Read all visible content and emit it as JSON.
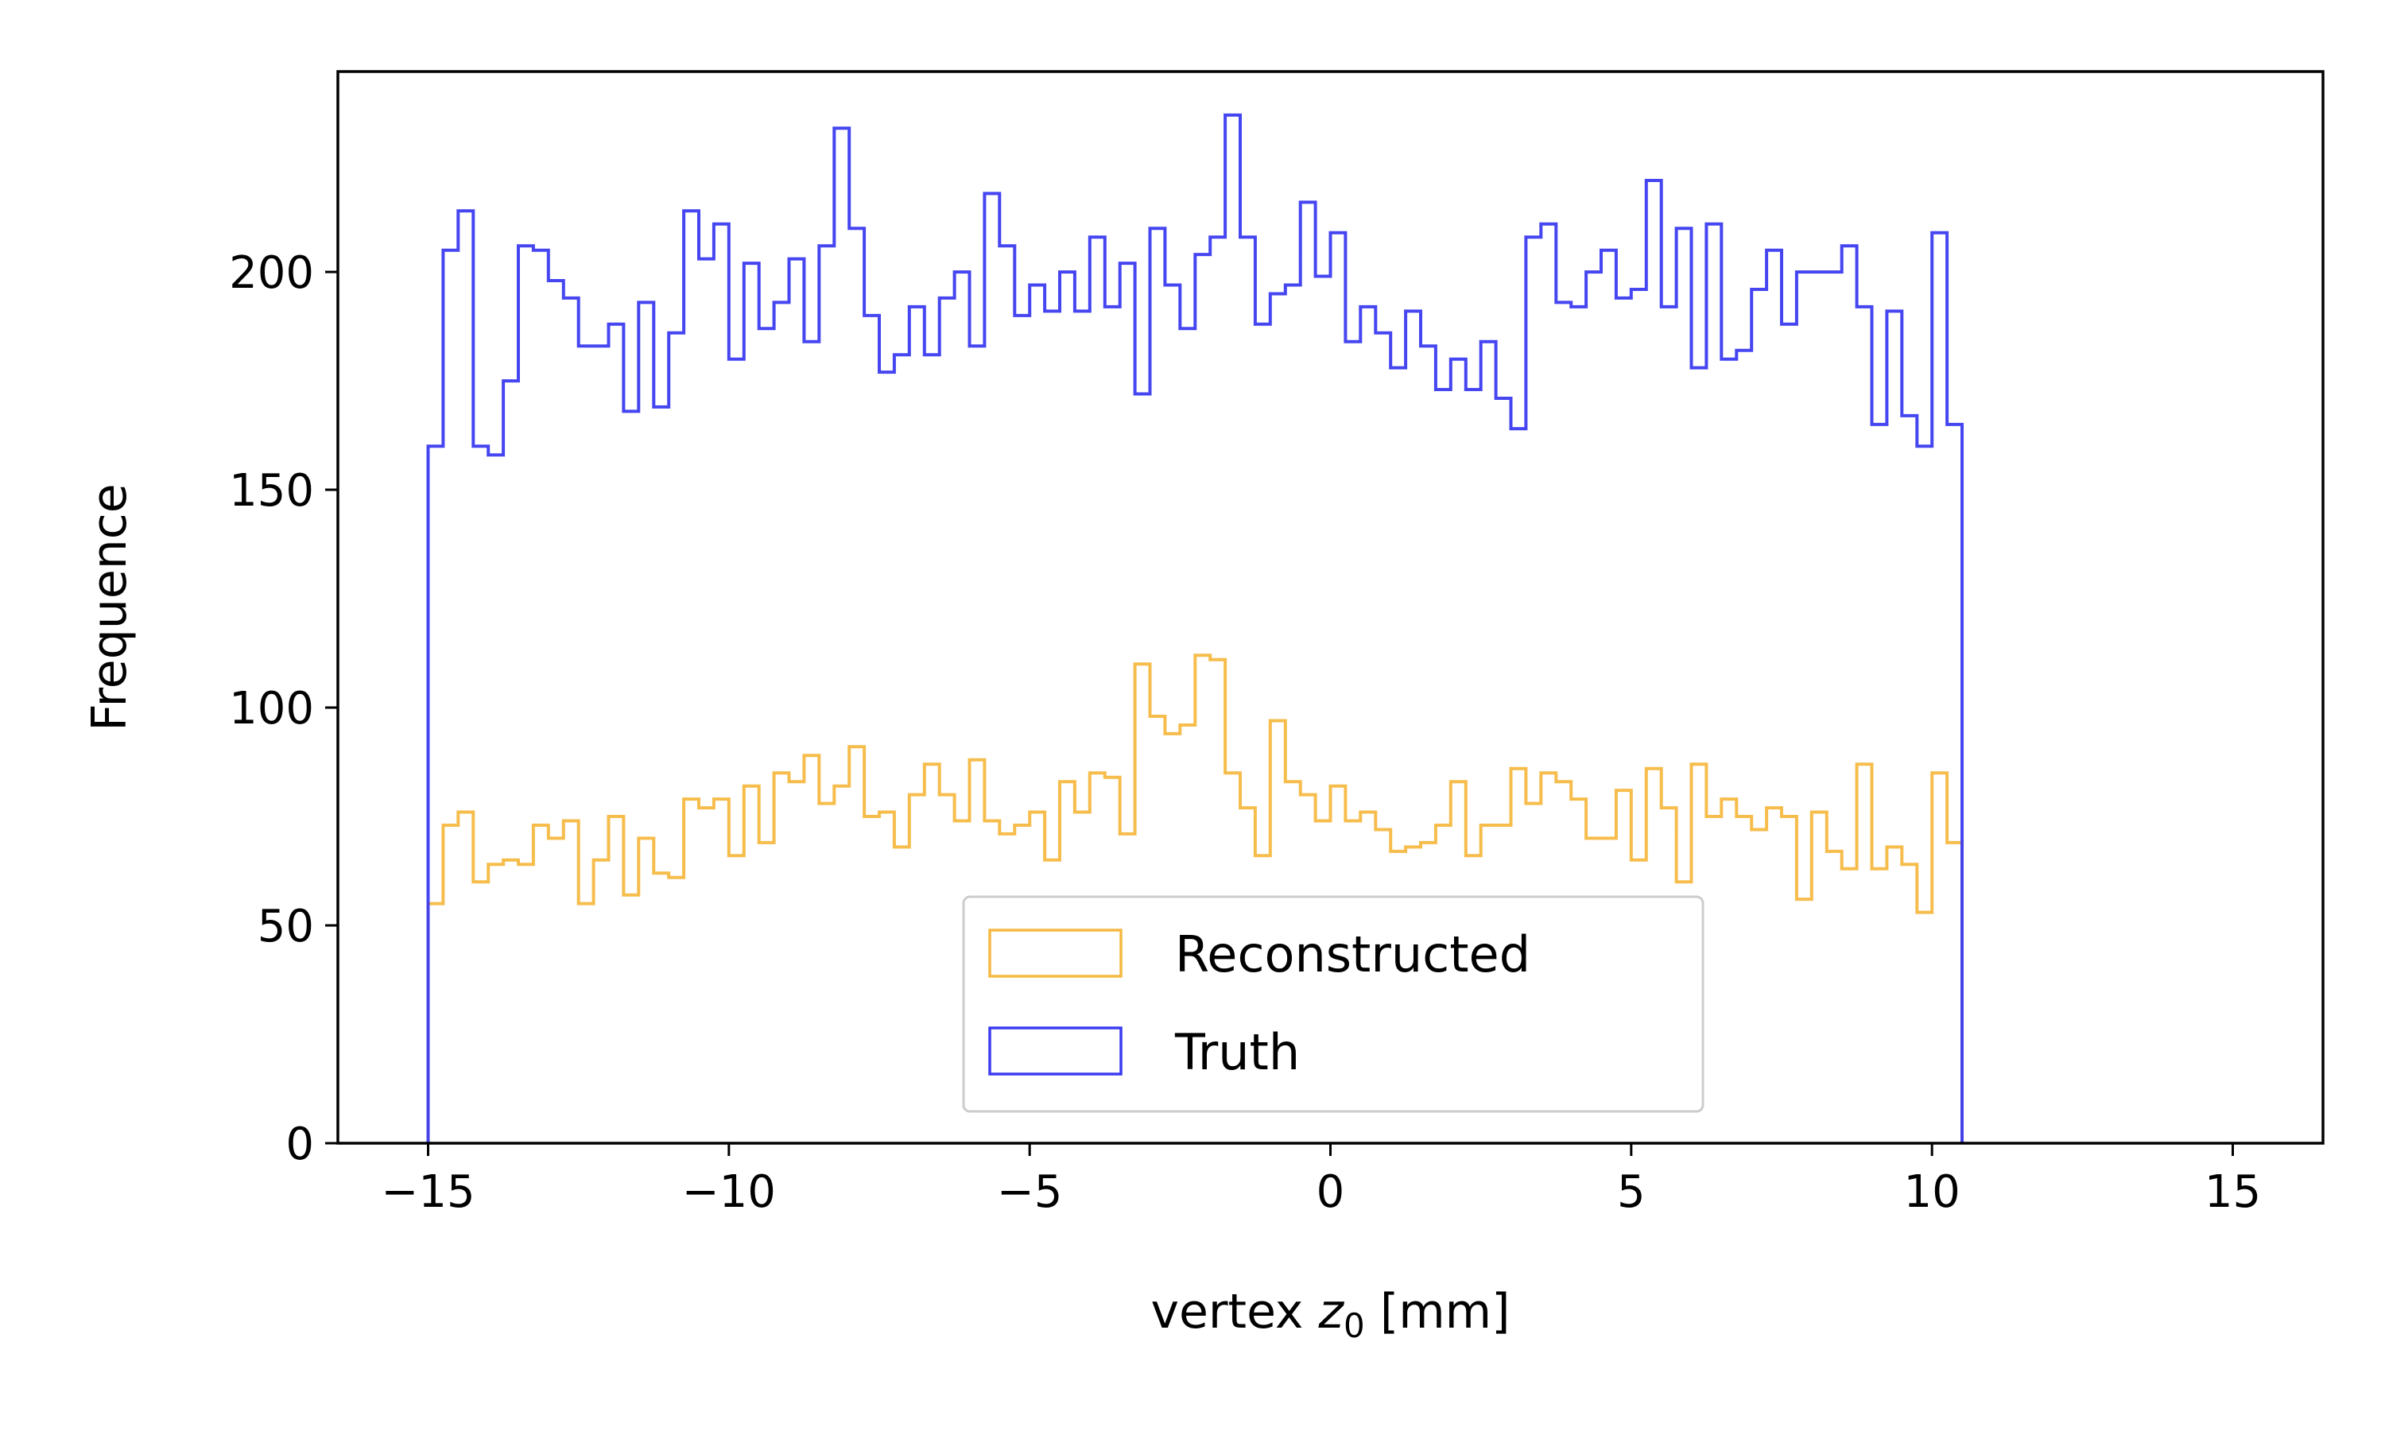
{
  "chart_data": {
    "type": "histogram",
    "xlabel_prefix": "vertex ",
    "xlabel_var": "z",
    "xlabel_sub": "0",
    "xlabel_suffix": " [mm]",
    "ylabel": "Frequence",
    "xlim": [
      -16.5,
      16.5
    ],
    "ylim": [
      0,
      246
    ],
    "xticks": [
      -15,
      -10,
      -5,
      0,
      5,
      10,
      15
    ],
    "xtick_labels": [
      "−15",
      "−10",
      "−5",
      "0",
      "5",
      "10",
      "15"
    ],
    "yticks": [
      0,
      50,
      100,
      150,
      200
    ],
    "ytick_labels": [
      "0",
      "50",
      "100",
      "150",
      "200"
    ],
    "bin_start": -15,
    "bin_width": 0.25,
    "grid": false,
    "legend_position": "lower-center",
    "series": [
      {
        "name": "Reconstructed",
        "color": "#f5b942",
        "values": [
          55,
          73,
          76,
          60,
          64,
          65,
          64,
          73,
          70,
          74,
          55,
          65,
          75,
          57,
          70,
          62,
          61,
          79,
          77,
          79,
          66,
          82,
          69,
          85,
          83,
          89,
          78,
          82,
          91,
          75,
          76,
          68,
          80,
          87,
          80,
          74,
          88,
          74,
          71,
          73,
          76,
          65,
          83,
          76,
          85,
          84,
          71,
          110,
          98,
          94,
          96,
          112,
          111,
          85,
          77,
          66,
          97,
          83,
          80,
          74,
          82,
          74,
          76,
          72,
          67,
          68,
          69,
          73,
          83,
          66,
          73,
          73,
          86,
          78,
          85,
          83,
          79,
          70,
          70,
          81,
          65,
          86,
          77,
          60,
          87,
          75,
          79,
          75,
          72,
          77,
          75,
          56,
          76,
          67,
          63,
          87,
          63,
          68,
          64,
          53,
          85,
          69
        ]
      },
      {
        "name": "Truth",
        "color": "#3b3bf0",
        "values": [
          160,
          205,
          214,
          160,
          158,
          175,
          206,
          205,
          198,
          194,
          183,
          183,
          188,
          168,
          193,
          169,
          186,
          214,
          203,
          211,
          180,
          202,
          187,
          193,
          203,
          184,
          206,
          233,
          210,
          190,
          177,
          181,
          192,
          181,
          194,
          200,
          183,
          218,
          206,
          190,
          197,
          191,
          200,
          191,
          208,
          192,
          202,
          172,
          210,
          197,
          187,
          204,
          208,
          236,
          208,
          188,
          195,
          197,
          216,
          199,
          209,
          184,
          192,
          186,
          178,
          191,
          183,
          173,
          180,
          173,
          184,
          171,
          164,
          208,
          211,
          193,
          192,
          200,
          205,
          194,
          196,
          221,
          192,
          210,
          178,
          211,
          180,
          182,
          196,
          205,
          188,
          200,
          200,
          200,
          206,
          192,
          165,
          191,
          167,
          160,
          209,
          165
        ]
      }
    ]
  }
}
